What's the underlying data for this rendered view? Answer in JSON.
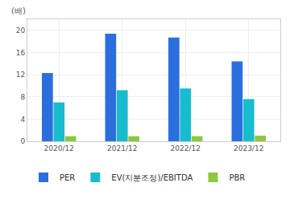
{
  "chart_data": {
    "type": "bar",
    "y_label": "(배)",
    "categories": [
      "2020/12",
      "2021/12",
      "2022/12",
      "2023/12"
    ],
    "series": [
      {
        "name": "PER",
        "color": "#2b6fde",
        "values": [
          12.3,
          19.4,
          18.7,
          14.4
        ]
      },
      {
        "name": "EV(지분조정)/EBITDA",
        "color": "#17bccf",
        "values": [
          7.0,
          9.2,
          9.5,
          7.6
        ]
      },
      {
        "name": "PBR",
        "color": "#8dc63f",
        "values": [
          0.9,
          0.9,
          0.9,
          1.0
        ]
      }
    ],
    "ylim": [
      0,
      22
    ],
    "yticks": [
      0,
      4,
      8,
      12,
      16,
      20
    ],
    "grid": true,
    "legend": "bottom"
  }
}
